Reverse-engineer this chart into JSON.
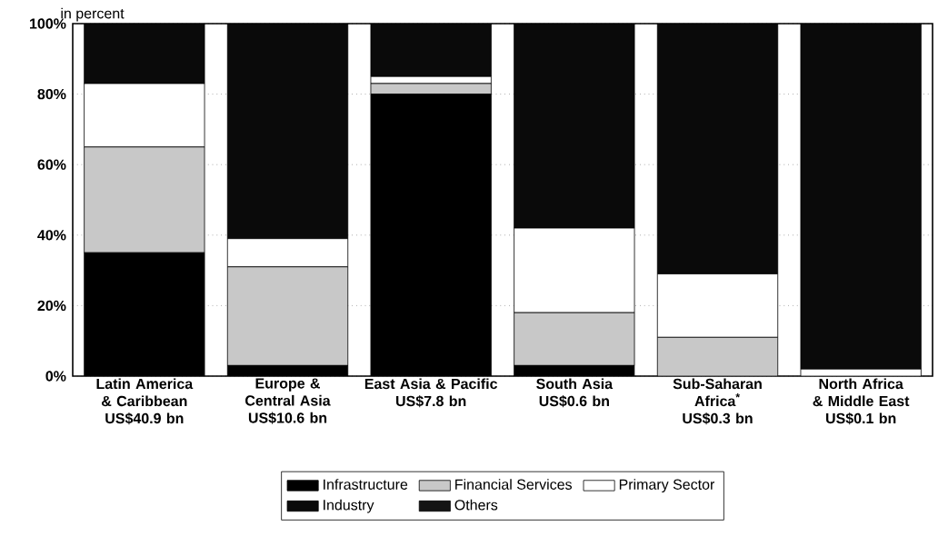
{
  "chart_data": {
    "type": "bar",
    "stacked": true,
    "ylabel": "in percent",
    "categories": [
      "Latin America & Caribbean",
      "Europe & Central Asia",
      "East Asia & Pacific",
      "South Asia",
      "Sub-Saharan Africa$^{*}$",
      "North Africa & Middle East"
    ],
    "annotations": [
      "US$40.9 bn",
      "US$10.6 bn",
      "US$7.8 bn",
      "US$0.6 bn",
      "US$0.3 bn",
      "US$0.1 bn"
    ],
    "series": [
      {
        "name": "Infrastructure",
        "color": "#000000",
        "values": [
          35,
          3,
          80,
          3,
          0,
          0
        ]
      },
      {
        "name": "Financial Services",
        "color": "#c8c8c8",
        "values": [
          30,
          28,
          3,
          15,
          11,
          0
        ]
      },
      {
        "name": "Primary Sector",
        "color": "#ffffff",
        "values": [
          18,
          8,
          2,
          24,
          18,
          2
        ]
      },
      {
        "name": "Industry",
        "color": "#0a0a0a",
        "values": [
          17,
          61,
          15,
          58,
          71,
          98
        ]
      },
      {
        "name": "Others",
        "color": "#141414",
        "values": [
          0,
          0,
          0,
          0,
          0,
          0
        ]
      }
    ],
    "ylim": [
      0,
      100
    ],
    "yticks": [
      {
        "value": 0,
        "label": "0%"
      },
      {
        "value": 20,
        "label": "20%"
      },
      {
        "value": 40,
        "label": "40%"
      },
      {
        "value": 60,
        "label": "60%"
      },
      {
        "value": 80,
        "label": "80%"
      },
      {
        "value": 100,
        "label": "100%"
      }
    ],
    "grid": "y",
    "legend": "bottom"
  }
}
